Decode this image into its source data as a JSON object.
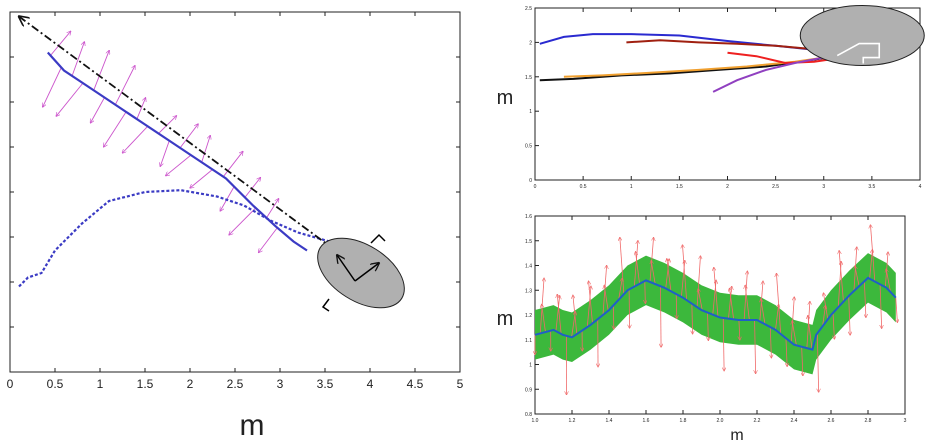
{
  "chart_data": [
    {
      "id": "left",
      "type": "line",
      "xlabel": "m",
      "ylabel": "",
      "xlim": [
        0,
        5
      ],
      "ylim": [
        0,
        4
      ],
      "x_ticks": [
        "0",
        "0.5",
        "1",
        "1.5",
        "2",
        "2.5",
        "3",
        "3.5",
        "4",
        "4.5",
        "5"
      ],
      "series": [
        {
          "style": "solid",
          "color": "#3b3bc4",
          "x": [
            0.42,
            0.6,
            0.9,
            1.2,
            1.5,
            1.8,
            2.1,
            2.4,
            2.7,
            2.95,
            3.15,
            3.3
          ],
          "y": [
            3.55,
            3.35,
            3.15,
            2.95,
            2.75,
            2.55,
            2.35,
            2.15,
            1.85,
            1.62,
            1.45,
            1.35
          ]
        },
        {
          "style": "dotted",
          "color": "#3b3bc4",
          "x": [
            0.1,
            0.2,
            0.35,
            0.5,
            0.8,
            1.1,
            1.5,
            1.9,
            2.3,
            2.6,
            2.9,
            3.2,
            3.55
          ],
          "y": [
            0.95,
            1.05,
            1.1,
            1.35,
            1.65,
            1.9,
            2.0,
            2.02,
            1.95,
            1.85,
            1.68,
            1.55,
            1.45
          ]
        },
        {
          "style": "dashdot",
          "color": "#111111",
          "x": [
            0.1,
            3.55
          ],
          "y": [
            3.95,
            1.4
          ]
        }
      ],
      "arrows_color": "#cc55cc",
      "robot": {
        "x": 3.9,
        "y": 1.1,
        "color": "#b0b0b0"
      }
    },
    {
      "id": "top-right",
      "type": "line",
      "xlabel": "",
      "ylabel": "m",
      "xlim": [
        0,
        4
      ],
      "ylim": [
        0,
        2.5
      ],
      "x_ticks": [
        "0",
        "0.5",
        "1",
        "1.5",
        "2",
        "2.5",
        "3",
        "3.5",
        "4"
      ],
      "y_ticks": [
        "0",
        "0.5",
        "1",
        "1.5",
        "2",
        "2.5"
      ],
      "series": [
        {
          "color": "#2a2ad0",
          "x": [
            0.05,
            0.3,
            0.6,
            1.0,
            1.5,
            2.0,
            2.5,
            3.0,
            3.3
          ],
          "y": [
            1.98,
            2.08,
            2.12,
            2.12,
            2.1,
            2.02,
            1.95,
            1.88,
            1.83
          ]
        },
        {
          "color": "#a02010",
          "x": [
            0.95,
            1.3,
            1.7,
            2.1,
            2.5,
            2.9,
            3.2
          ],
          "y": [
            2.0,
            2.03,
            2.0,
            1.98,
            1.95,
            1.9,
            1.85
          ]
        },
        {
          "color": "#111111",
          "x": [
            0.05,
            0.4,
            0.9,
            1.4,
            1.9,
            2.4,
            2.9,
            3.2
          ],
          "y": [
            1.45,
            1.47,
            1.52,
            1.55,
            1.6,
            1.65,
            1.75,
            1.82
          ]
        },
        {
          "color": "#f0a030",
          "x": [
            0.3,
            0.7,
            1.2,
            1.7,
            2.2,
            2.7,
            3.1
          ],
          "y": [
            1.5,
            1.52,
            1.56,
            1.6,
            1.65,
            1.72,
            1.8
          ]
        },
        {
          "color": "#ee2020",
          "x": [
            2.0,
            2.3,
            2.6,
            2.9,
            3.2
          ],
          "y": [
            1.85,
            1.8,
            1.7,
            1.72,
            1.78
          ]
        },
        {
          "color": "#9040c0",
          "x": [
            1.85,
            2.1,
            2.4,
            2.7,
            3.0
          ],
          "y": [
            1.28,
            1.45,
            1.6,
            1.7,
            1.78
          ]
        }
      ],
      "robot": {
        "x": 3.4,
        "y": 2.1,
        "color": "#b0b0b0"
      }
    },
    {
      "id": "bottom-right",
      "type": "line",
      "xlabel": "m",
      "ylabel": "m",
      "xlim": [
        1.0,
        3.0
      ],
      "ylim": [
        0.8,
        1.6
      ],
      "x_ticks": [
        "1.0",
        "1.2",
        "1.4",
        "1.6",
        "1.8",
        "2.0",
        "2.2",
        "2.4",
        "2.6",
        "2.8",
        "3"
      ],
      "y_ticks": [
        "0.8",
        "0.9",
        "1",
        "1.1",
        "1.2",
        "1.3",
        "1.4",
        "1.5",
        "1.6"
      ],
      "series": [
        {
          "name": "",
          "color": "#1f5fc8",
          "x": [
            1.0,
            1.1,
            1.15,
            1.2,
            1.3,
            1.4,
            1.5,
            1.6,
            1.7,
            1.8,
            1.9,
            2.0,
            2.1,
            2.2,
            2.3,
            2.4,
            2.5,
            2.52,
            2.6,
            2.7,
            2.8,
            2.9,
            2.95
          ],
          "y": [
            1.12,
            1.14,
            1.12,
            1.11,
            1.16,
            1.22,
            1.3,
            1.34,
            1.31,
            1.27,
            1.22,
            1.19,
            1.18,
            1.18,
            1.14,
            1.08,
            1.06,
            1.12,
            1.2,
            1.28,
            1.35,
            1.31,
            1.27
          ]
        }
      ],
      "band_halfwidth": 0.1,
      "band_color": "#3cb83c",
      "arrows_color": "#f06a6a"
    }
  ]
}
